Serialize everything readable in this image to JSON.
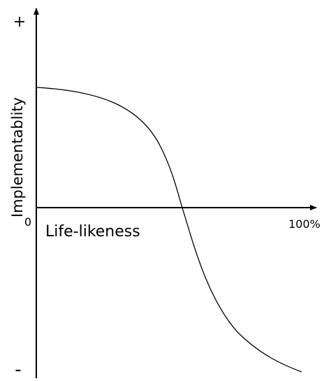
{
  "axes": {
    "y_top": "+",
    "y_bottom": "-",
    "y_label": "Implementablity",
    "x_origin": "0",
    "x_end": "100%",
    "x_label": "Life-likeness"
  }
}
